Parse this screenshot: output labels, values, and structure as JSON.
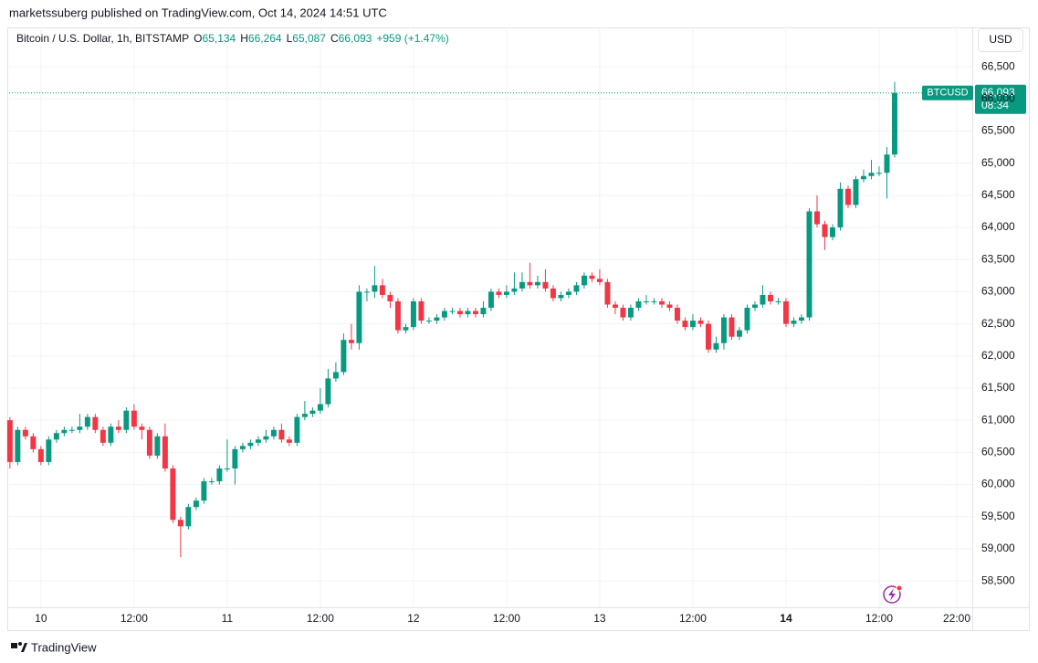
{
  "header": {
    "published": "marketssuberg published on TradingView.com, Oct 14, 2024 14:51 UTC",
    "symbol": "Bitcoin / U.S. Dollar, 1h, BITSTAMP",
    "ohlc": [
      {
        "key": "O",
        "value": "65,134"
      },
      {
        "key": "H",
        "value": "66,264"
      },
      {
        "key": "L",
        "value": "65,087"
      },
      {
        "key": "C",
        "value": "66,093"
      }
    ],
    "change": "+959 (+1.47%)"
  },
  "currency": "USD",
  "price_tag": {
    "symbol": "BTCUSD",
    "price": "66,093",
    "countdown": "08:34"
  },
  "footer": "TradingView",
  "chart_data": {
    "type": "candlestick",
    "x": [
      -4,
      -3,
      -2,
      -1,
      0,
      1,
      2,
      3,
      4,
      5,
      6,
      7,
      8,
      9,
      10,
      11,
      12,
      13,
      14,
      15,
      16,
      17,
      18,
      19,
      20,
      21,
      22,
      23,
      24,
      25,
      26,
      27,
      28,
      29,
      30,
      31,
      32,
      33,
      34,
      35,
      36,
      37,
      38,
      39,
      40,
      41,
      42,
      43,
      44,
      45,
      46,
      47,
      48,
      49,
      50,
      51,
      52,
      53,
      54,
      55,
      56,
      57,
      58,
      59,
      60,
      61,
      62,
      63,
      64,
      65,
      66,
      67,
      68,
      69,
      70,
      71,
      72,
      73,
      74,
      75,
      76,
      77,
      78,
      79,
      80,
      81,
      82,
      83,
      84,
      85,
      86,
      87,
      88,
      89,
      90,
      91,
      92,
      93,
      94,
      95,
      96,
      97,
      98,
      99,
      100,
      101,
      102,
      103,
      104,
      105,
      106,
      107,
      108,
      109,
      110
    ],
    "open": [
      61000,
      60350,
      60850,
      60750,
      60550,
      60350,
      60700,
      60800,
      60850,
      60850,
      60900,
      61050,
      60850,
      60650,
      60900,
      60850,
      61150,
      60900,
      60850,
      60450,
      60750,
      60250,
      59450,
      59350,
      59650,
      59750,
      60050,
      60050,
      60250,
      60250,
      60550,
      60600,
      60650,
      60700,
      60750,
      60850,
      60700,
      60650,
      61050,
      61100,
      61150,
      61250,
      61650,
      61750,
      62250,
      62200,
      63000,
      63000,
      63100,
      62950,
      62850,
      62400,
      62450,
      62850,
      62550,
      62550,
      62600,
      62700,
      62700,
      62650,
      62700,
      62650,
      62750,
      63000,
      62950,
      63000,
      63050,
      63150,
      63100,
      63150,
      63050,
      62900,
      62950,
      63000,
      63100,
      63250,
      63200,
      63150,
      62800,
      62750,
      62600,
      62750,
      62850,
      62850,
      62850,
      62800,
      62750,
      62550,
      62450,
      62550,
      62500,
      62100,
      62200,
      62600,
      62300,
      62400,
      62750,
      62800,
      62950,
      62850,
      62850,
      62500,
      62550,
      62600,
      64250,
      64050,
      63850,
      64000,
      64600,
      64350,
      64750,
      64800,
      64850,
      64850,
      65134
    ],
    "high": [
      61050,
      60900,
      60900,
      60800,
      60600,
      60750,
      60850,
      60900,
      60900,
      61100,
      61100,
      61100,
      60900,
      60950,
      61000,
      61200,
      61250,
      60950,
      60900,
      60800,
      60950,
      60300,
      59500,
      59700,
      59800,
      60100,
      60100,
      60300,
      60700,
      60600,
      60650,
      60700,
      60750,
      60850,
      60900,
      60950,
      60750,
      61100,
      61300,
      61200,
      61500,
      61800,
      61900,
      62350,
      62500,
      63100,
      63050,
      63400,
      63200,
      63000,
      62900,
      62500,
      62900,
      62900,
      62600,
      62650,
      62750,
      62750,
      62750,
      62750,
      62750,
      62850,
      63050,
      63050,
      63100,
      63300,
      63300,
      63450,
      63250,
      63350,
      63100,
      63000,
      63050,
      63150,
      63300,
      63300,
      63350,
      63200,
      62850,
      62800,
      62800,
      62900,
      62950,
      62900,
      62900,
      62850,
      62800,
      62600,
      62650,
      62600,
      62550,
      62300,
      62650,
      62650,
      62450,
      62800,
      62850,
      63100,
      63000,
      62900,
      62900,
      62600,
      62650,
      64300,
      64500,
      64100,
      64050,
      64700,
      64650,
      64800,
      64900,
      65050,
      64950,
      65250,
      66264
    ],
    "low": [
      60250,
      60300,
      60700,
      60500,
      60300,
      60300,
      60650,
      60750,
      60800,
      60800,
      60850,
      60800,
      60600,
      60600,
      60800,
      60800,
      60850,
      60700,
      60400,
      60400,
      60200,
      59400,
      58870,
      59300,
      59600,
      59700,
      60000,
      60000,
      60200,
      60000,
      60500,
      60550,
      60600,
      60650,
      60700,
      60650,
      60600,
      60600,
      61000,
      61050,
      61100,
      61200,
      61600,
      61700,
      62100,
      62100,
      62850,
      62900,
      62900,
      62750,
      62350,
      62350,
      62400,
      62500,
      62500,
      62500,
      62550,
      62650,
      62600,
      62600,
      62600,
      62600,
      62700,
      62900,
      62900,
      62950,
      63000,
      63050,
      63050,
      63000,
      62850,
      62850,
      62900,
      62950,
      63050,
      63150,
      63100,
      62750,
      62650,
      62550,
      62550,
      62700,
      62800,
      62800,
      62750,
      62700,
      62500,
      62400,
      62400,
      62450,
      62050,
      62050,
      62100,
      62250,
      62250,
      62350,
      62700,
      62750,
      62800,
      62800,
      62450,
      62450,
      62500,
      62550,
      64000,
      63650,
      63800,
      63950,
      64300,
      64300,
      64700,
      64750,
      64800,
      64450,
      65087
    ],
    "close": [
      60350,
      60850,
      60750,
      60550,
      60350,
      60700,
      60800,
      60850,
      60850,
      60900,
      61050,
      60850,
      60650,
      60900,
      60850,
      61150,
      60900,
      60850,
      60450,
      60750,
      60250,
      59450,
      59350,
      59650,
      59750,
      60050,
      60050,
      60250,
      60250,
      60550,
      60600,
      60650,
      60700,
      60750,
      60850,
      60700,
      60650,
      61050,
      61100,
      61150,
      61250,
      61650,
      61750,
      62250,
      62200,
      63000,
      63000,
      63100,
      62950,
      62850,
      62400,
      62450,
      62850,
      62550,
      62550,
      62600,
      62700,
      62700,
      62650,
      62700,
      62650,
      62750,
      63000,
      62950,
      63000,
      63050,
      63150,
      63100,
      63150,
      63050,
      62900,
      62950,
      63000,
      63100,
      63250,
      63200,
      63150,
      62800,
      62750,
      62600,
      62750,
      62850,
      62850,
      62850,
      62800,
      62750,
      62550,
      62450,
      62550,
      62500,
      62100,
      62200,
      62600,
      62300,
      62400,
      62750,
      62800,
      62950,
      62850,
      62850,
      62500,
      62550,
      62600,
      64250,
      64050,
      63850,
      64000,
      64600,
      64350,
      64750,
      64800,
      64850,
      64850,
      65134,
      66093
    ],
    "up_color": "#089981",
    "down_color": "#f23645",
    "xlim": [
      -4.1,
      120
    ],
    "ylim": [
      58090,
      66970
    ],
    "xticks": [
      {
        "value": 0,
        "label": "10"
      },
      {
        "value": 12,
        "label": "12:00"
      },
      {
        "value": 24,
        "label": "11"
      },
      {
        "value": 36,
        "label": "12:00"
      },
      {
        "value": 48,
        "label": "12"
      },
      {
        "value": 60,
        "label": "12:00"
      },
      {
        "value": 72,
        "label": "13"
      },
      {
        "value": 84,
        "label": "12:00"
      },
      {
        "value": 96,
        "label": "14"
      },
      {
        "value": 108,
        "label": "12:00"
      },
      {
        "value": 118,
        "label": "22:00"
      }
    ],
    "yticks": [
      {
        "value": 58500,
        "label": "58,500"
      },
      {
        "value": 59000,
        "label": "59,000"
      },
      {
        "value": 59500,
        "label": "59,500"
      },
      {
        "value": 60000,
        "label": "60,000"
      },
      {
        "value": 60500,
        "label": "60,500"
      },
      {
        "value": 61000,
        "label": "61,000"
      },
      {
        "value": 61500,
        "label": "61,500"
      },
      {
        "value": 62000,
        "label": "62,000"
      },
      {
        "value": 62500,
        "label": "62,500"
      },
      {
        "value": 63000,
        "label": "63,000"
      },
      {
        "value": 63500,
        "label": "63,500"
      },
      {
        "value": 64000,
        "label": "64,000"
      },
      {
        "value": 64500,
        "label": "64,500"
      },
      {
        "value": 65000,
        "label": "65,000"
      },
      {
        "value": 65500,
        "label": "65,500"
      },
      {
        "value": 66000,
        "label": "66,000"
      },
      {
        "value": 66500,
        "label": "66,500"
      }
    ],
    "grid": true
  }
}
